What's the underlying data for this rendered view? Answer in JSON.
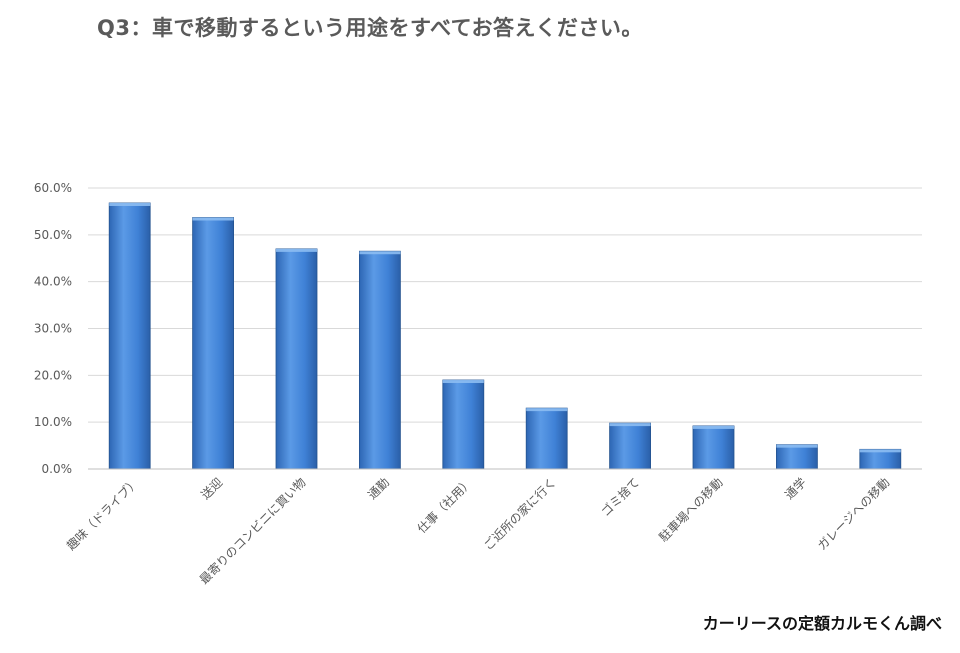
{
  "title": "Q3：車で移動するという用途をすべてお答えください。",
  "source": "カーリースの定額カルモくん調べ",
  "colors": {
    "bar_light": "#6aa6ec",
    "bar_mid": "#3f81d6",
    "bar_dark": "#2a5fa8",
    "grid": "#d9d9d9",
    "axis": "#bfbfbf"
  },
  "chart_data": {
    "type": "bar",
    "categories": [
      "趣味（ドライブ）",
      "送迎",
      "最寄りのコンビニに買い物",
      "通勤",
      "仕事（社用）",
      "ご近所の家に行く",
      "ゴミ捨て",
      "駐車場への移動",
      "通学",
      "ガレージへの移動"
    ],
    "values": [
      56.8,
      53.7,
      47.0,
      46.5,
      19.0,
      13.0,
      9.8,
      9.2,
      5.2,
      4.2
    ],
    "ylim": [
      0,
      60
    ],
    "yticks": [
      "0.0%",
      "10.0%",
      "20.0%",
      "30.0%",
      "40.0%",
      "50.0%",
      "60.0%"
    ],
    "grid": true,
    "legend": "none"
  }
}
